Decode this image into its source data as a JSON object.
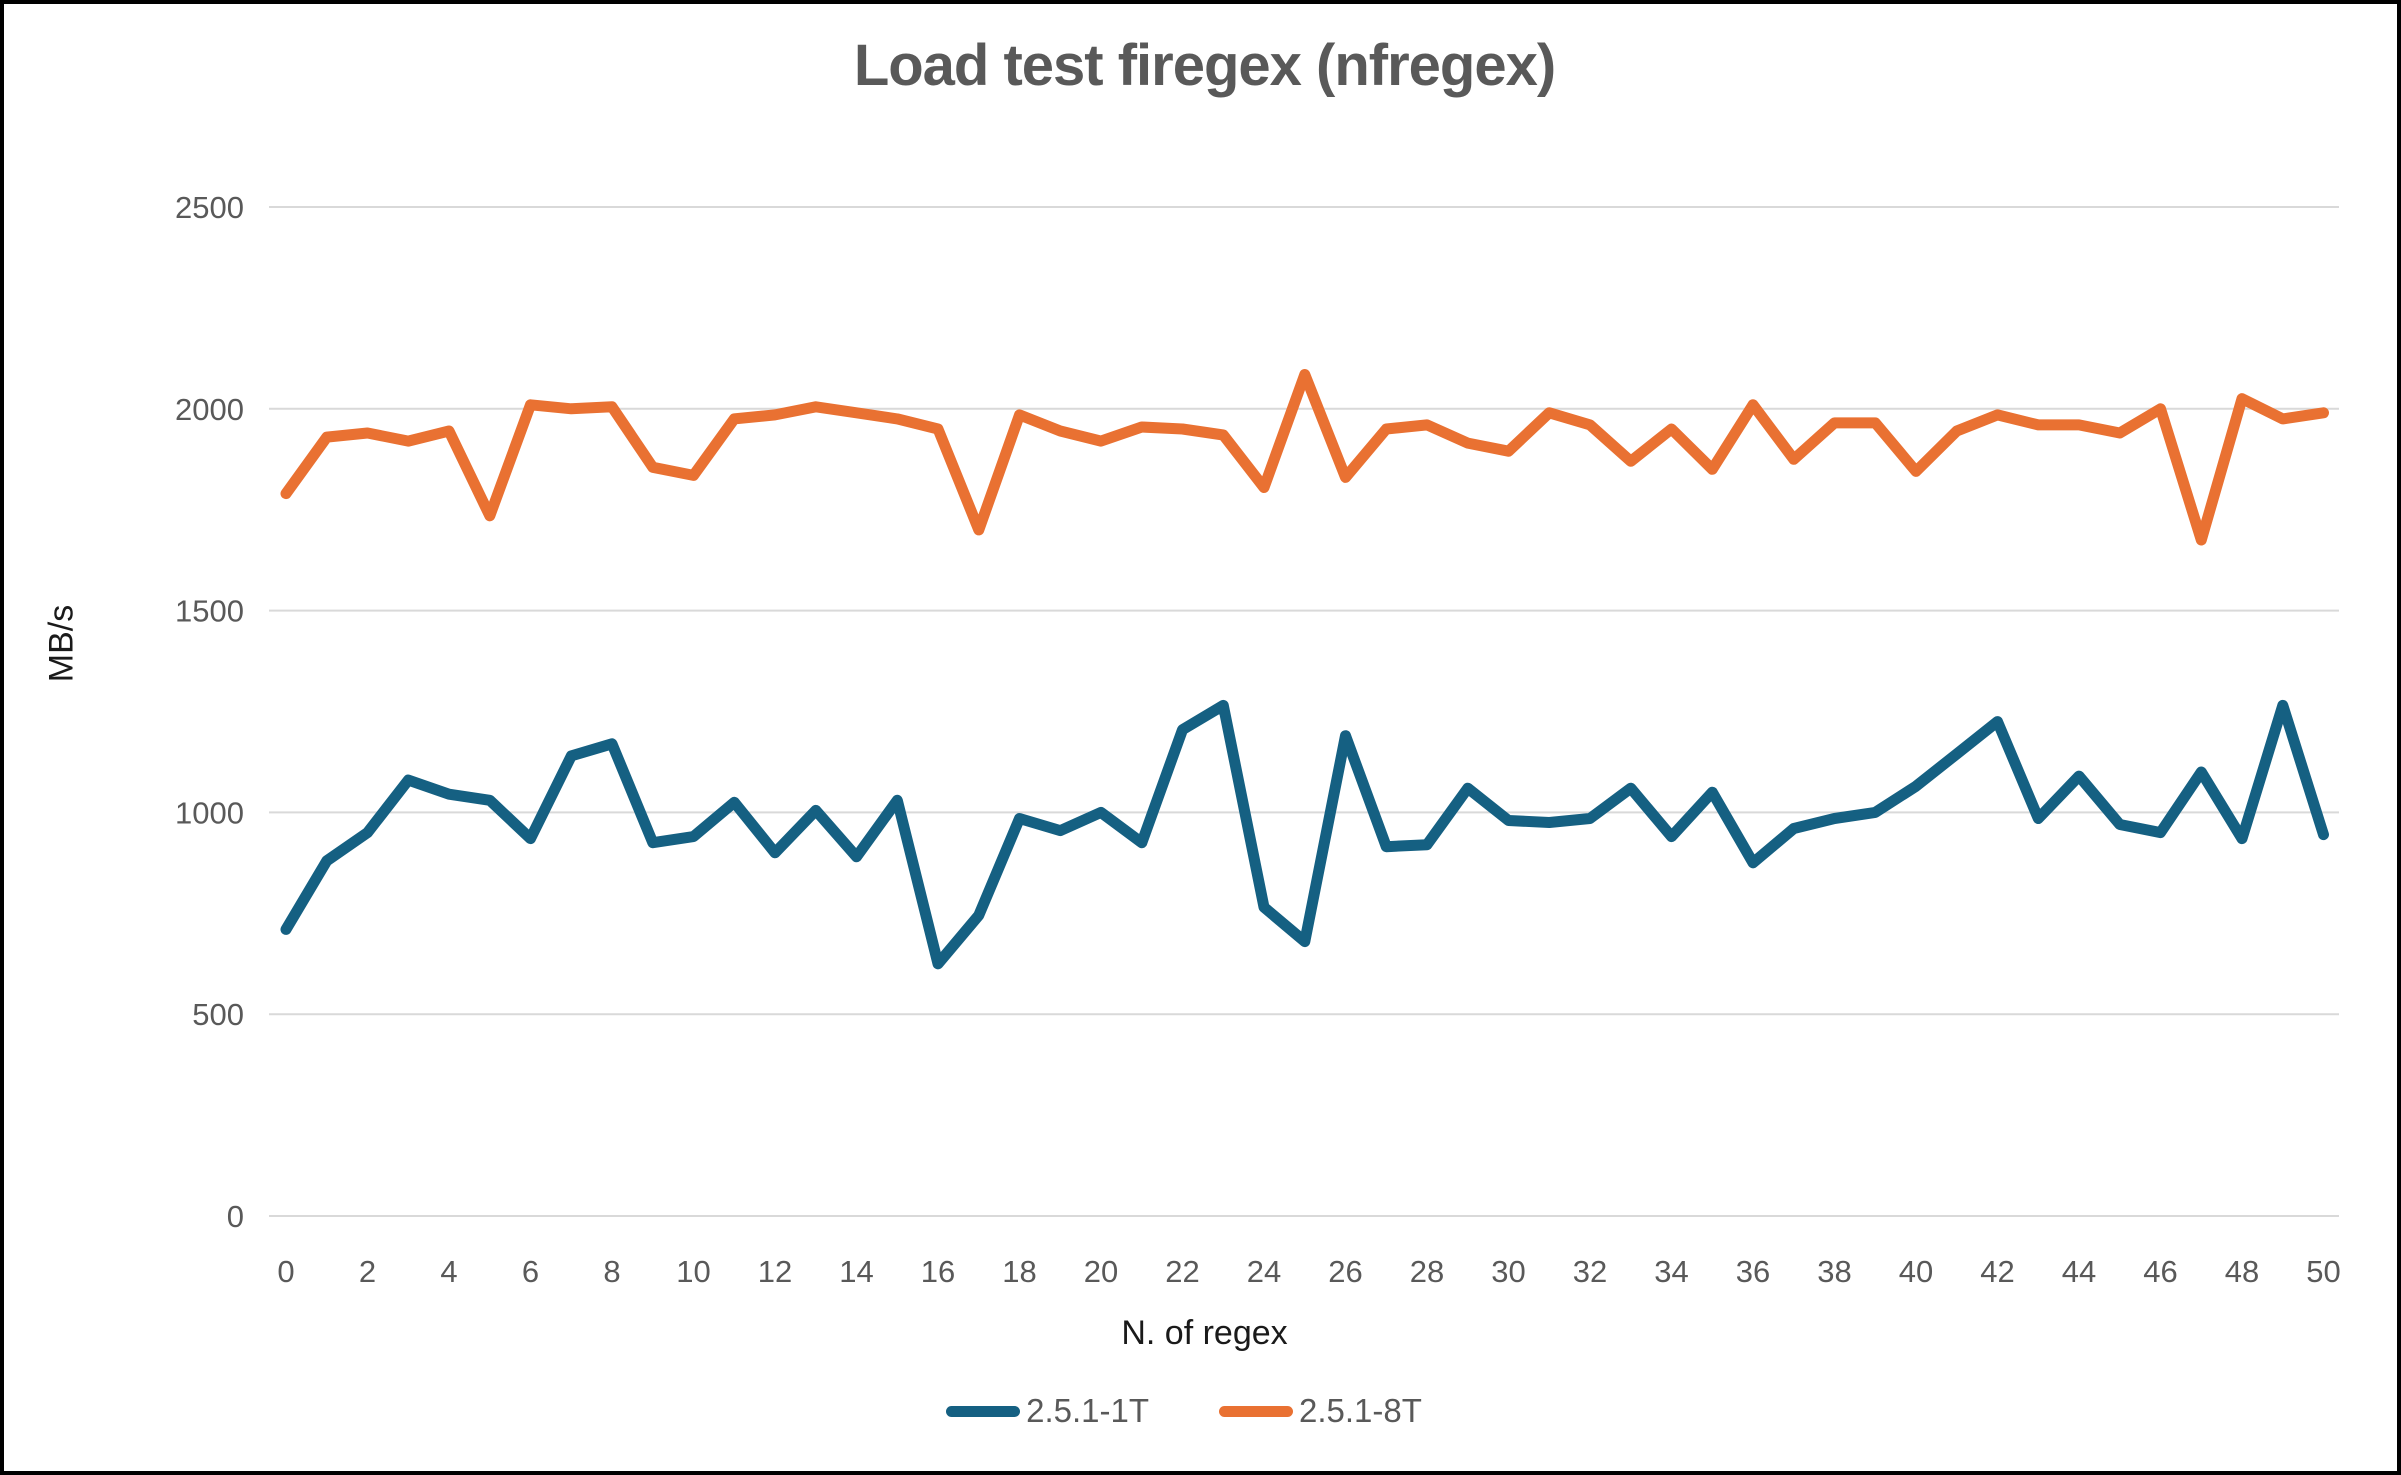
{
  "chart_data": {
    "type": "line",
    "title": "Load test firegex (nfregex)",
    "xlabel": "N. of regex",
    "ylabel": "MB/s",
    "x_range": [
      0,
      50
    ],
    "x_tick_step": 2,
    "ylim": [
      0,
      2500
    ],
    "y_ticks": [
      0,
      500,
      1000,
      1500,
      2000,
      2500
    ],
    "grid": "horizontal-only",
    "legend_position": "bottom-center",
    "gridline_color": "#D9D9D9",
    "tick_label_color": "#595959",
    "series": [
      {
        "name": "2.5.1-1T",
        "color": "#156082",
        "values": [
          710,
          880,
          950,
          1080,
          1045,
          1030,
          935,
          1140,
          1170,
          925,
          940,
          1025,
          900,
          1005,
          890,
          1030,
          625,
          745,
          985,
          955,
          1000,
          925,
          1205,
          1265,
          765,
          680,
          1190,
          915,
          920,
          1060,
          980,
          975,
          985,
          1060,
          940,
          1050,
          875,
          960,
          985,
          1000,
          1065,
          1145,
          1225,
          985,
          1090,
          970,
          950,
          1100,
          935,
          1265,
          945
        ]
      },
      {
        "name": "2.5.1-8T",
        "color": "#E97132",
        "values": [
          1790,
          1930,
          1940,
          1920,
          1945,
          1735,
          2010,
          2000,
          2005,
          1855,
          1835,
          1975,
          1985,
          2005,
          1990,
          1975,
          1950,
          1700,
          1985,
          1945,
          1920,
          1955,
          1950,
          1935,
          1805,
          2085,
          1830,
          1950,
          1960,
          1915,
          1895,
          1990,
          1960,
          1870,
          1950,
          1850,
          2010,
          1875,
          1965,
          1965,
          1845,
          1945,
          1985,
          1960,
          1960,
          1940,
          2000,
          1675,
          2025,
          1975,
          1990
        ]
      }
    ]
  },
  "styles": {
    "title_color": "#595959",
    "axis_title_color": "#1a1a1a",
    "background": "#ffffff",
    "frame_border_color": "#000000"
  }
}
